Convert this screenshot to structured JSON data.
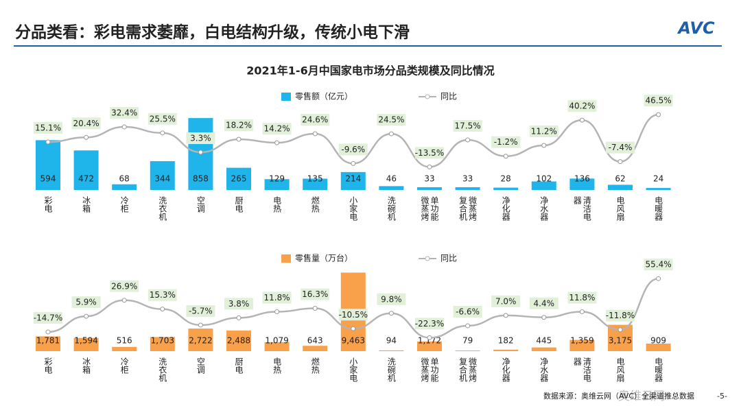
{
  "title": "分品类看：彩电需求萎靡，白电结构升级，传统小电下滑",
  "logo": "AVC",
  "source": "数据来源：奥维云网（AVC）全渠道推总数据",
  "page_number": "-5-",
  "watermark": "奥维云网",
  "chart_data": [
    {
      "type": "combo",
      "title": "2021年1-6月中国家电市场分品类规模及同比情况",
      "categories": [
        "彩电",
        "冰箱",
        "冷柜",
        "洗衣机",
        "空调",
        "厨电",
        "电热",
        "燃热",
        "小家电",
        "洗碗机",
        "单功能微蒸烤",
        "微蒸烤复合机",
        "净化器",
        "净水器",
        "清洁电器",
        "电风扇",
        "电暖器"
      ],
      "ylim": [
        0,
        900
      ],
      "y2lim": [
        -40,
        60
      ],
      "series": [
        {
          "name": "零售额（亿元）",
          "type": "bar",
          "color": "#1fb5ea",
          "values": [
            594,
            472,
            68,
            344,
            858,
            265,
            129,
            135,
            214,
            46,
            33,
            33,
            28,
            102,
            136,
            62,
            24
          ]
        },
        {
          "name": "同比",
          "type": "line",
          "axis": "y2",
          "color": "#b4b4b4",
          "values": [
            15.1,
            20.4,
            32.4,
            25.5,
            3.3,
            18.2,
            14.2,
            24.6,
            -9.6,
            24.5,
            -13.5,
            17.5,
            -1.2,
            11.2,
            40.2,
            -7.4,
            46.5
          ],
          "value_labels": [
            "15.1%",
            "20.4%",
            "32.4%",
            "25.5%",
            "3.3%",
            "18.2%",
            "14.2%",
            "24.6%",
            "-9.6%",
            "24.5%",
            "-13.5%",
            "17.5%",
            "-1.2%",
            "11.2%",
            "40.2%",
            "-7.4%",
            "46.5%"
          ]
        }
      ]
    },
    {
      "type": "combo",
      "categories": [
        "彩电",
        "冰箱",
        "冷柜",
        "洗衣机",
        "空调",
        "厨电",
        "电热",
        "燃热",
        "小家电",
        "洗碗机",
        "单功能微蒸烤",
        "微蒸烤复合机",
        "净化器",
        "净水器",
        "清洁电器",
        "电风扇",
        "电暖器"
      ],
      "ylim": [
        0,
        9500
      ],
      "y2lim": [
        -40,
        70
      ],
      "series": [
        {
          "name": "零售量（万台）",
          "type": "bar",
          "color": "#f9a04a",
          "values": [
            1781,
            1594,
            516,
            1703,
            2722,
            2488,
            1079,
            643,
            9463,
            94,
            1172,
            79,
            182,
            445,
            1359,
            3175,
            909
          ],
          "value_labels": [
            "1,781",
            "1,594",
            "516",
            "1,703",
            "2,722",
            "2,488",
            "1,079",
            "643",
            "9,463",
            "94",
            "1,172",
            "79",
            "182",
            "445",
            "1,359",
            "3,175",
            "909"
          ]
        },
        {
          "name": "同比",
          "type": "line",
          "axis": "y2",
          "color": "#b4b4b4",
          "values": [
            -14.7,
            5.9,
            26.9,
            15.3,
            -5.7,
            3.8,
            11.8,
            16.3,
            -10.5,
            9.8,
            -22.3,
            -6.6,
            7.0,
            4.4,
            11.8,
            -11.8,
            55.4
          ],
          "value_labels": [
            "-14.7%",
            "5.9%",
            "26.9%",
            "15.3%",
            "-5.7%",
            "3.8%",
            "11.8%",
            "16.3%",
            "-10.5%",
            "9.8%",
            "-22.3%",
            "-6.6%",
            "7.0%",
            "4.4%",
            "11.8%",
            "-11.8%",
            "55.4%"
          ]
        }
      ]
    }
  ]
}
